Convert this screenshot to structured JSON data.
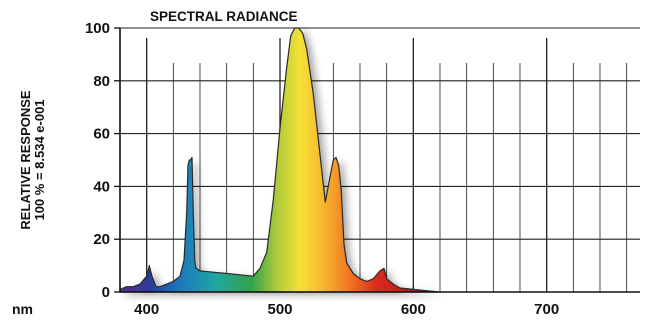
{
  "chart_data": {
    "type": "area",
    "title": "SPECTRAL RADIANCE",
    "ylabel_lines": [
      "RELATIVE RESPONSE",
      "100 % = 8.534 e-001"
    ],
    "xunit": "nm",
    "xlim": [
      380,
      770
    ],
    "ylim": [
      0,
      100
    ],
    "x_ticks": [
      400,
      500,
      600,
      700
    ],
    "y_ticks": [
      0,
      20,
      40,
      60,
      80,
      100
    ],
    "grid": true,
    "series": [
      {
        "x": [
          380,
          385,
          390,
          395,
          400,
          402,
          404,
          407,
          410,
          415,
          420,
          425,
          428,
          430,
          431,
          432,
          433,
          434,
          435,
          436,
          437,
          440,
          450,
          460,
          470,
          480,
          485,
          490,
          495,
          500,
          505,
          508,
          511,
          514,
          517,
          520,
          525,
          530,
          534,
          538,
          540,
          542,
          544,
          546,
          548,
          550,
          555,
          560,
          565,
          570,
          575,
          578,
          580,
          585,
          590,
          600,
          610,
          620
        ],
        "y": [
          1,
          2,
          2,
          3,
          6,
          10,
          6,
          2,
          2,
          3,
          4,
          6,
          12,
          30,
          48,
          50,
          50,
          51,
          30,
          12,
          9,
          8,
          7.5,
          7,
          6.5,
          6,
          9,
          15,
          35,
          62,
          85,
          97,
          100,
          100,
          98,
          92,
          75,
          52,
          34,
          45,
          50,
          51,
          48,
          38,
          18,
          11,
          7,
          5,
          4,
          5,
          8,
          9,
          5,
          3,
          1.5,
          1,
          0.5,
          0
        ]
      }
    ]
  }
}
